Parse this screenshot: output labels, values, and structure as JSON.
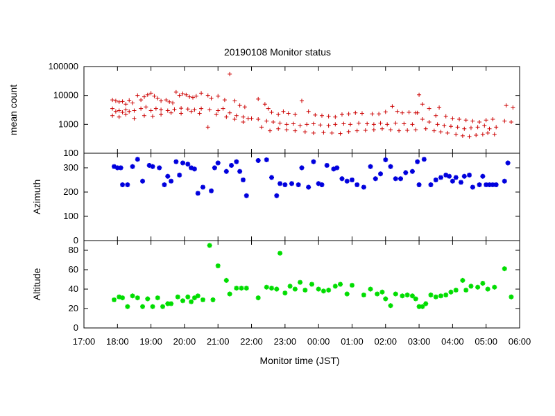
{
  "chart_data": {
    "title": "20190108 Monitor status",
    "xlabel": "Monitor time (JST)",
    "x_ticks": [
      "17:00",
      "18:00",
      "19:00",
      "20:00",
      "21:00",
      "22:00",
      "23:00",
      "00:00",
      "01:00",
      "02:00",
      "03:00",
      "04:00",
      "05:00",
      "06:00"
    ],
    "x_range_hours": [
      17,
      30
    ],
    "panels": [
      {
        "type": "scatter",
        "ylabel": "mean count",
        "yscale": "log",
        "ylim": [
          100,
          100000
        ],
        "y_ticks": [
          "100",
          "1000",
          "10000",
          "100000"
        ],
        "y_tick_values": [
          100,
          1000,
          10000,
          100000
        ],
        "marker": "plus",
        "color": "#cc0000",
        "series": [
          {
            "x": [
              17.85,
              17.95,
              18.05,
              18.15,
              18.25,
              18.35,
              18.45,
              18.6,
              18.7,
              18.8,
              18.9,
              19.0,
              19.1,
              19.2,
              19.3,
              19.45,
              19.55,
              19.65,
              19.75,
              19.85,
              19.95,
              20.05,
              20.15,
              20.25,
              20.35,
              20.5,
              20.7,
              20.8,
              21.0,
              21.2,
              21.35,
              21.5,
              21.65,
              21.8,
              22.2,
              22.4,
              22.5,
              22.6,
              22.8,
              22.95,
              23.1,
              23.3,
              23.5,
              23.7,
              23.9,
              24.1,
              24.3,
              24.5,
              24.7,
              24.9,
              25.1,
              25.3,
              25.6,
              25.8,
              26.0,
              26.2,
              26.35,
              26.5,
              26.7,
              26.9,
              27.0,
              27.1,
              27.3,
              27.5,
              27.6,
              27.8,
              28.0,
              28.2,
              28.4,
              28.6,
              28.8,
              29.0,
              29.2,
              29.6,
              29.8
            ],
            "y": [
              7000,
              6500,
              6000,
              6200,
              5000,
              6800,
              5500,
              10000,
              7000,
              9000,
              10500,
              12000,
              9500,
              8000,
              6500,
              7000,
              6000,
              5500,
              13000,
              10000,
              11500,
              10500,
              9000,
              8500,
              9500,
              12000,
              10000,
              8000,
              9500,
              7000,
              55000,
              6500,
              4500,
              4000,
              7500,
              5000,
              3500,
              2600,
              2200,
              2800,
              2400,
              2200,
              6500,
              2800,
              2100,
              2000,
              1900,
              1800,
              2200,
              2300,
              2500,
              2400,
              2300,
              2300,
              2700,
              4200,
              2800,
              2500,
              2600,
              2500,
              10500,
              5000,
              3500,
              2000,
              3800,
              1900,
              1600,
              1500,
              1400,
              1300,
              1200,
              1400,
              1500,
              4500,
              3800
            ]
          },
          {
            "x": [
              17.85,
              17.95,
              18.05,
              18.15,
              18.25,
              18.35,
              18.5,
              18.7,
              18.85,
              19.0,
              19.15,
              19.3,
              19.5,
              19.7,
              19.9,
              20.1,
              20.3,
              20.5,
              20.75,
              21.0,
              21.15,
              21.35,
              21.55,
              21.75,
              21.9,
              22.2,
              22.45,
              22.65,
              22.85,
              23.05,
              23.25,
              23.45,
              23.65,
              23.85,
              24.05,
              24.3,
              24.5,
              24.75,
              24.95,
              25.2,
              25.45,
              25.65,
              25.85,
              26.05,
              26.3,
              26.55,
              26.8,
              26.95,
              27.1,
              27.3,
              27.55,
              27.75,
              27.95,
              28.15,
              28.35,
              28.55,
              28.75,
              28.95,
              29.1,
              29.3,
              29.55,
              29.75
            ],
            "y": [
              3500,
              2800,
              3000,
              2600,
              3200,
              2800,
              3000,
              3500,
              4000,
              3000,
              3500,
              3200,
              3000,
              3300,
              3600,
              3400,
              3200,
              3500,
              3200,
              3000,
              3500,
              2500,
              2000,
              1800,
              1600,
              1500,
              1300,
              1200,
              1100,
              1000,
              1050,
              900,
              1000,
              1050,
              950,
              900,
              1000,
              1050,
              1000,
              1100,
              1050,
              1000,
              1100,
              1000,
              1100,
              1050,
              1000,
              2500,
              1500,
              1200,
              1000,
              900,
              850,
              800,
              700,
              750,
              800,
              900,
              700,
              800,
              1300,
              1200
            ]
          },
          {
            "x": [
              17.85,
              18.05,
              18.25,
              18.5,
              18.8,
              19.05,
              19.3,
              19.6,
              19.9,
              20.2,
              20.45,
              20.7,
              20.95,
              21.25,
              21.5,
              21.75,
              22.0,
              22.3,
              22.55,
              22.8,
              23.05,
              23.3,
              23.6,
              23.85,
              24.15,
              24.4,
              24.65,
              24.9,
              25.15,
              25.4,
              25.65,
              25.9,
              26.15,
              26.4,
              26.65,
              26.9,
              27.2,
              27.45,
              27.65,
              27.85,
              28.1,
              28.3,
              28.5,
              28.7,
              28.9,
              29.05,
              29.25
            ],
            "y": [
              2000,
              1800,
              2200,
              1600,
              2000,
              1900,
              2200,
              2500,
              2400,
              2800,
              2400,
              800,
              2200,
              1800,
              1500,
              1200,
              1600,
              800,
              600,
              700,
              650,
              600,
              550,
              500,
              520,
              500,
              480,
              560,
              600,
              620,
              650,
              700,
              650,
              600,
              620,
              650,
              700,
              600,
              550,
              500,
              450,
              400,
              380,
              420,
              450,
              500,
              450
            ]
          }
        ]
      },
      {
        "type": "scatter",
        "ylabel": "Azimuth",
        "yscale": "linear",
        "ylim": [
          0,
          360
        ],
        "y_ticks": [
          "0",
          "100",
          "200",
          "300"
        ],
        "y_tick_values": [
          0,
          100,
          200,
          300
        ],
        "marker": "star",
        "color": "#0000dd",
        "series": [
          {
            "x": [
              17.9,
              18.0,
              18.1,
              18.15,
              18.3,
              18.45,
              18.6,
              18.75,
              18.95,
              19.05,
              19.25,
              19.4,
              19.5,
              19.6,
              19.75,
              19.85,
              19.95,
              20.1,
              20.2,
              20.3,
              20.4,
              20.55,
              20.8,
              20.9,
              21.0,
              21.25,
              21.4,
              21.55,
              21.65,
              21.75,
              21.85,
              22.2,
              22.45,
              22.6,
              22.75,
              22.85,
              23.0,
              23.2,
              23.4,
              23.5,
              23.7,
              23.85,
              24.0,
              24.1,
              24.25,
              24.45,
              24.55,
              24.7,
              24.85,
              25.0,
              25.15,
              25.35,
              25.55,
              25.7,
              25.85,
              26.0,
              26.15,
              26.3,
              26.45,
              26.6,
              26.8,
              26.95,
              27.0,
              27.15,
              27.35,
              27.5,
              27.65,
              27.8,
              27.9,
              28.0,
              28.1,
              28.25,
              28.35,
              28.5,
              28.6,
              28.8,
              28.9,
              29.0,
              29.1,
              29.2,
              29.3,
              29.55,
              29.65
            ],
            "y": [
              305,
              300,
              300,
              230,
              230,
              305,
              335,
              245,
              310,
              305,
              300,
              230,
              265,
              245,
              325,
              270,
              320,
              315,
              300,
              295,
              195,
              220,
              205,
              300,
              320,
              285,
              310,
              325,
              285,
              250,
              185,
              330,
              333,
              260,
              185,
              235,
              230,
              235,
              230,
              300,
              220,
              325,
              235,
              230,
              310,
              295,
              300,
              255,
              245,
              250,
              230,
              220,
              305,
              255,
              275,
              333,
              305,
              255,
              255,
              280,
              285,
              325,
              230,
              335,
              230,
              250,
              260,
              270,
              265,
              245,
              260,
              240,
              265,
              270,
              220,
              230,
              265,
              230,
              230,
              230,
              230,
              245,
              320
            ]
          }
        ]
      },
      {
        "type": "scatter",
        "ylabel": "Altitude",
        "yscale": "linear",
        "ylim": [
          0,
          90
        ],
        "y_ticks": [
          "0",
          "20",
          "40",
          "60",
          "80"
        ],
        "y_tick_values": [
          0,
          20,
          40,
          60,
          80
        ],
        "marker": "star",
        "color": "#00dd00",
        "series": [
          {
            "x": [
              17.9,
              18.05,
              18.15,
              18.3,
              18.45,
              18.6,
              18.75,
              18.9,
              19.05,
              19.2,
              19.35,
              19.5,
              19.6,
              19.8,
              19.95,
              20.1,
              20.2,
              20.3,
              20.4,
              20.55,
              20.75,
              20.85,
              21.0,
              21.25,
              21.35,
              21.55,
              21.7,
              21.85,
              22.2,
              22.45,
              22.6,
              22.75,
              22.85,
              23.0,
              23.15,
              23.3,
              23.45,
              23.6,
              23.8,
              24.0,
              24.15,
              24.3,
              24.5,
              24.65,
              24.85,
              25.0,
              25.35,
              25.55,
              25.75,
              25.9,
              26.0,
              26.15,
              26.3,
              26.5,
              26.65,
              26.8,
              26.9,
              27.0,
              27.1,
              27.2,
              27.35,
              27.5,
              27.65,
              27.8,
              27.95,
              28.1,
              28.3,
              28.4,
              28.55,
              28.75,
              28.9,
              29.05,
              29.25,
              29.55,
              29.75
            ],
            "y": [
              29,
              32,
              31,
              22,
              33,
              31,
              22,
              30,
              22,
              31,
              22,
              25,
              25,
              32,
              28,
              32,
              27,
              31,
              33,
              29,
              85,
              29,
              64,
              49,
              35,
              41,
              41,
              41,
              31,
              42,
              41,
              40,
              77,
              36,
              43,
              40,
              47,
              39,
              45,
              40,
              38,
              39,
              43,
              45,
              35,
              44,
              34,
              40,
              35,
              37,
              30,
              23,
              35,
              33,
              34,
              33,
              30,
              22,
              22,
              25,
              34,
              32,
              33,
              34,
              37,
              39,
              49,
              39,
              43,
              42,
              46,
              40,
              42,
              61,
              32
            ]
          }
        ]
      }
    ]
  }
}
